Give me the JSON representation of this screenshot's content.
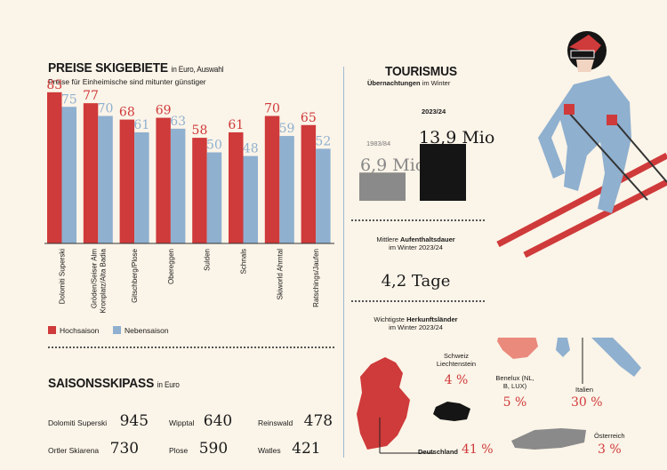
{
  "ski_prices": {
    "title": "PREISE SKIGEBIETE",
    "title_suffix": "in Euro, Auswahl",
    "subtitle": "Preise für Einheimische sind mitunter günstiger",
    "legend": {
      "high": "Hochsaison",
      "low": "Nebensaison"
    },
    "colors": {
      "high": "#cf3a3a",
      "low": "#8fb0cf"
    }
  },
  "chart_data": {
    "type": "bar",
    "categories": [
      "Dolomiti Superski",
      "Gröden/Seiser Alm Kronplatz/Alta Badia",
      "Gitschberg/Plose",
      "Obereggen",
      "Sulden",
      "Schnals",
      "Skiworld Ahrntal",
      "Ratschings/Jaufen"
    ],
    "series": [
      {
        "name": "Hochsaison",
        "values": [
          83,
          77,
          68,
          69,
          58,
          61,
          70,
          65
        ]
      },
      {
        "name": "Nebensaison",
        "values": [
          75,
          70,
          61,
          63,
          50,
          48,
          59,
          52
        ]
      }
    ],
    "ylim": [
      0,
      100
    ]
  },
  "season_pass": {
    "title": "SAISONSSKIPASS",
    "title_suffix": "in Euro",
    "items": [
      {
        "name": "Dolomiti Superski",
        "value": "945"
      },
      {
        "name": "Wipptal",
        "value": "640"
      },
      {
        "name": "Reinswald",
        "value": "478"
      },
      {
        "name": "Ortler Skiarena",
        "value": "730"
      },
      {
        "name": "Plose",
        "value": "590"
      },
      {
        "name": "Watles",
        "value": "421"
      }
    ]
  },
  "tourism": {
    "title": "TOURISMUS",
    "subtitle_bold": "Übernachtungen",
    "subtitle_rest": "im Winter",
    "years": [
      {
        "year": "1983/84",
        "value": "6,9 Mio",
        "num": 6.9,
        "color": "#8a8a8a"
      },
      {
        "year": "2023/24",
        "value": "13,9 Mio",
        "num": 13.9,
        "color": "#151515"
      }
    ],
    "stay_label_1": "Mittlere",
    "stay_label_bold": "Aufenthaltsdauer",
    "stay_label_2": "im Winter 2023/24",
    "stay_value": "4,2 Tage",
    "origin_label_1": "Wichtigste",
    "origin_label_bold": "Herkunftsländer",
    "origin_label_2": "im Winter 2023/24",
    "countries": [
      {
        "name": "Deutschland",
        "pct": "41 %"
      },
      {
        "name": "Schweiz Liechtenstein",
        "pct": "4 %"
      },
      {
        "name": "Benelux (NL, B, LUX)",
        "pct": "5 %"
      },
      {
        "name": "Italien",
        "pct": "30 %"
      },
      {
        "name": "Österreich",
        "pct": "3 %"
      }
    ]
  }
}
